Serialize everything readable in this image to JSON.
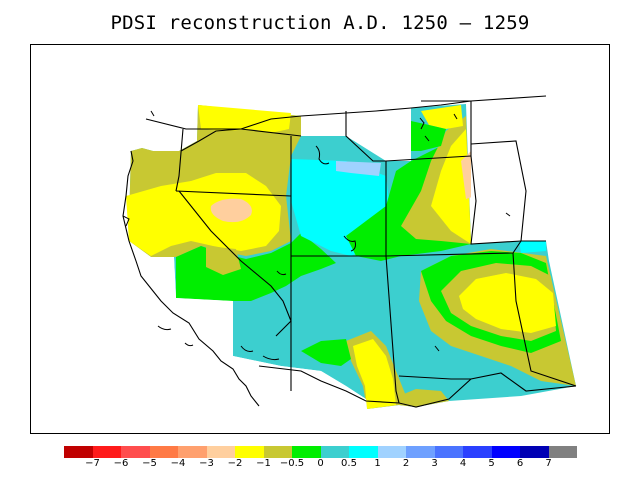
{
  "title": "PDSI reconstruction A.D. 1250 – 1259",
  "colorbar": {
    "colors": [
      "#c00000",
      "#ff1a1a",
      "#ff4d4d",
      "#ff7a45",
      "#ffa06e",
      "#ffcf9e",
      "#ffff00",
      "#c8c832",
      "#00ee00",
      "#3ccfcf",
      "#00ffff",
      "#a0d2ff",
      "#6ea0ff",
      "#4a73ff",
      "#2a40ff",
      "#0000ff",
      "#0000b4",
      "#808080"
    ],
    "labels": [
      "−7",
      "−6",
      "−5",
      "−4",
      "−3",
      "−2",
      "−1",
      "−0.5",
      "0",
      "0.5",
      "1",
      "2",
      "3",
      "4",
      "5",
      "6",
      "7"
    ]
  },
  "legend_colors": {
    "dry_moderate": "#ffcf9e",
    "dry_mild": "#ffff00",
    "near_normal_dry": "#c8c832",
    "near_normal": "#00ee00",
    "near_normal_wet": "#3ccfcf",
    "wet_mild": "#00ffff",
    "wet_moderate": "#a0d2ff"
  }
}
